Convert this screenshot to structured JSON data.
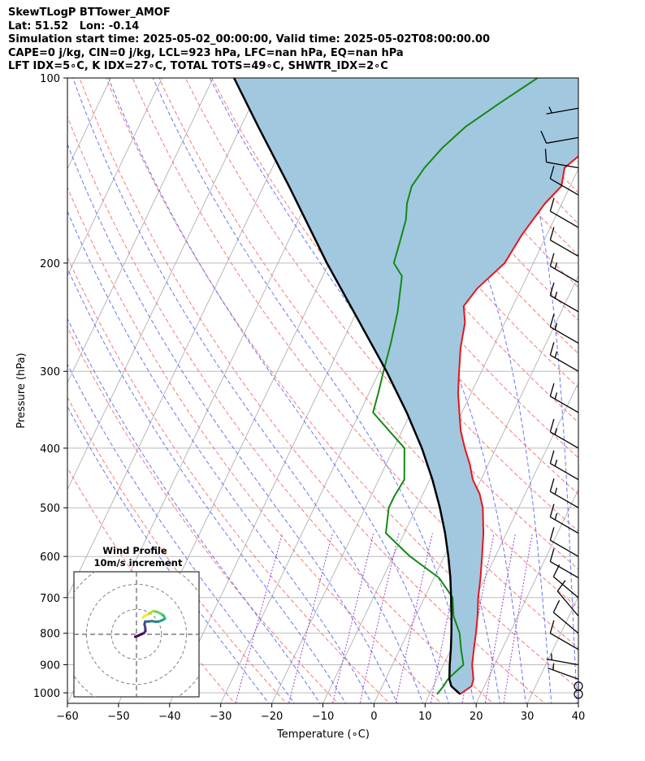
{
  "header": {
    "lines": [
      "SkewTLogP BTTower_AMOF",
      "Lat: 51.52   Lon: -0.14",
      "Simulation start time: 2025-05-02_00:00:00, Valid time: 2025-05-02T08:00:00.00",
      "CAPE=0 j/kg, CIN=0 j/kg, LCL=923 hPa, LFC=nan hPa, EQ=nan hPa",
      "LFT IDX=5∘C, K IDX=27∘C, TOTAL TOTS=49∘C, SHWTR_IDX=2∘C"
    ]
  },
  "chart_data": {
    "type": "skewt-logp",
    "xlabel": "Temperature (∘C)",
    "ylabel": "Pressure (hPa)",
    "xlim": [
      -60,
      40
    ],
    "ylim": [
      1040,
      100
    ],
    "x_ticks": [
      -60,
      -50,
      -40,
      -30,
      -20,
      -10,
      0,
      10,
      20,
      30,
      40
    ],
    "x_tick_labels": [
      "−60",
      "−50",
      "−40",
      "−30",
      "−20",
      "−10",
      "0",
      "10",
      "20",
      "30",
      "40"
    ],
    "y_ticks": [
      1000,
      900,
      800,
      700,
      600,
      500,
      400,
      300,
      200,
      100
    ],
    "y_tick_labels": [
      "1000",
      "900",
      "800",
      "700",
      "600",
      "500",
      "400",
      "300",
      "200",
      "100"
    ],
    "colors": {
      "temperature": "#e8141c",
      "dewpoint": "#138a13",
      "parcel": "#000000",
      "shade": "#a2c8e0",
      "dry_adiabat": "#f26b6b",
      "moist_adiabat": "#4a5ef5",
      "mixing_ratio": "#9b44c9",
      "isotherm": "#b0b0b0",
      "isobar": "#b0b0b0"
    },
    "series": [
      {
        "name": "temperature",
        "points": [
          [
            1005,
            16
          ],
          [
            975,
            17.5
          ],
          [
            950,
            17.2
          ],
          [
            900,
            15.6
          ],
          [
            850,
            14.5
          ],
          [
            800,
            13.4
          ],
          [
            750,
            12.1
          ],
          [
            700,
            10.5
          ],
          [
            650,
            9.1
          ],
          [
            600,
            7.4
          ],
          [
            550,
            5.5
          ],
          [
            500,
            3.0
          ],
          [
            475,
            1.1
          ],
          [
            450,
            -1.6
          ],
          [
            425,
            -3.6
          ],
          [
            400,
            -6.1
          ],
          [
            375,
            -8.5
          ],
          [
            350,
            -10.5
          ],
          [
            325,
            -12.6
          ],
          [
            300,
            -14.4
          ],
          [
            275,
            -16.3
          ],
          [
            250,
            -17.8
          ],
          [
            235,
            -19.6
          ],
          [
            220,
            -18.6
          ],
          [
            200,
            -15.6
          ],
          [
            180,
            -14.9
          ],
          [
            160,
            -13.3
          ],
          [
            150,
            -11.7
          ],
          [
            140,
            -12.8
          ],
          [
            130,
            -10.0
          ],
          [
            120,
            -7.9
          ],
          [
            110,
            -4.5
          ],
          [
            105,
            -2.7
          ],
          [
            100,
            -0.8
          ]
        ]
      },
      {
        "name": "dewpoint",
        "points": [
          [
            1005,
            11.5
          ],
          [
            975,
            12.0
          ],
          [
            950,
            12.2
          ],
          [
            925,
            13.0
          ],
          [
            900,
            13.9
          ],
          [
            850,
            12.0
          ],
          [
            800,
            10.2
          ],
          [
            750,
            7.4
          ],
          [
            700,
            5.5
          ],
          [
            650,
            1.0
          ],
          [
            600,
            -6.7
          ],
          [
            550,
            -13.6
          ],
          [
            500,
            -15.4
          ],
          [
            480,
            -15.4
          ],
          [
            450,
            -15.0
          ],
          [
            400,
            -17.9
          ],
          [
            350,
            -27.4
          ],
          [
            325,
            -28.2
          ],
          [
            300,
            -29.2
          ],
          [
            270,
            -30.4
          ],
          [
            240,
            -32.0
          ],
          [
            210,
            -34.5
          ],
          [
            200,
            -37.3
          ],
          [
            185,
            -38.1
          ],
          [
            170,
            -39.0
          ],
          [
            160,
            -40.3
          ],
          [
            150,
            -41.0
          ],
          [
            140,
            -40.2
          ],
          [
            130,
            -38.6
          ],
          [
            120,
            -36.0
          ],
          [
            110,
            -31.6
          ],
          [
            100,
            -26.5
          ]
        ]
      },
      {
        "name": "parcel",
        "points": [
          [
            1005,
            16.0
          ],
          [
            975,
            13.5
          ],
          [
            950,
            12.5
          ],
          [
            923,
            11.8
          ],
          [
            900,
            11.2
          ],
          [
            850,
            10.0
          ],
          [
            800,
            8.6
          ],
          [
            750,
            7.0
          ],
          [
            700,
            5.2
          ],
          [
            650,
            3.2
          ],
          [
            600,
            0.8
          ],
          [
            550,
            -2.0
          ],
          [
            500,
            -5.4
          ],
          [
            450,
            -9.5
          ],
          [
            400,
            -14.5
          ],
          [
            350,
            -20.8
          ],
          [
            300,
            -28.6
          ],
          [
            250,
            -38.4
          ],
          [
            200,
            -50.4
          ],
          [
            150,
            -65.0
          ],
          [
            120,
            -76.6
          ],
          [
            100,
            -85.9
          ]
        ]
      }
    ],
    "wind_barbs": [
      {
        "p": 1005,
        "speed": 0,
        "dir": 0
      },
      {
        "p": 975,
        "speed": 0,
        "dir": 0
      },
      {
        "p": 950,
        "speed": 5,
        "dir": 290
      },
      {
        "p": 900,
        "speed": 5,
        "dir": 280
      },
      {
        "p": 850,
        "speed": 10,
        "dir": 300
      },
      {
        "p": 800,
        "speed": 10,
        "dir": 310
      },
      {
        "p": 750,
        "speed": 10,
        "dir": 320
      },
      {
        "p": 700,
        "speed": 10,
        "dir": 310
      },
      {
        "p": 650,
        "speed": 10,
        "dir": 300
      },
      {
        "p": 600,
        "speed": 10,
        "dir": 300
      },
      {
        "p": 550,
        "speed": 15,
        "dir": 300
      },
      {
        "p": 500,
        "speed": 15,
        "dir": 300
      },
      {
        "p": 450,
        "speed": 15,
        "dir": 300
      },
      {
        "p": 400,
        "speed": 15,
        "dir": 300
      },
      {
        "p": 350,
        "speed": 15,
        "dir": 300
      },
      {
        "p": 300,
        "speed": 15,
        "dir": 300
      },
      {
        "p": 270,
        "speed": 15,
        "dir": 300
      },
      {
        "p": 240,
        "speed": 15,
        "dir": 300
      },
      {
        "p": 215,
        "speed": 15,
        "dir": 300
      },
      {
        "p": 195,
        "speed": 10,
        "dir": 300
      },
      {
        "p": 175,
        "speed": 10,
        "dir": 300
      },
      {
        "p": 155,
        "speed": 10,
        "dir": 300
      },
      {
        "p": 140,
        "speed": 10,
        "dir": 280
      },
      {
        "p": 125,
        "speed": 10,
        "dir": 260
      },
      {
        "p": 112,
        "speed": 5,
        "dir": 260
      }
    ],
    "hodograph": {
      "title": "Wind Profile",
      "subtitle": "10m/s increment",
      "ring_step": 10,
      "rings": 3,
      "range": 25,
      "points": [
        [
          -0.5,
          -1.0
        ],
        [
          0.8,
          -0.5
        ],
        [
          1.8,
          0.0
        ],
        [
          3.0,
          0.5
        ],
        [
          3.6,
          1.3
        ],
        [
          3.5,
          2.6
        ],
        [
          3.2,
          4.0
        ],
        [
          3.5,
          5.1
        ],
        [
          4.8,
          5.1
        ],
        [
          6.3,
          5.3
        ],
        [
          7.7,
          5.0
        ],
        [
          9.2,
          5.2
        ],
        [
          10.4,
          5.7
        ],
        [
          11.4,
          6.2
        ],
        [
          10.9,
          7.4
        ],
        [
          9.8,
          8.2
        ],
        [
          8.4,
          8.9
        ],
        [
          6.7,
          9.3
        ],
        [
          5.5,
          8.6
        ],
        [
          4.3,
          7.8
        ],
        [
          3.2,
          7.3
        ],
        [
          2.6,
          6.7
        ]
      ]
    }
  }
}
